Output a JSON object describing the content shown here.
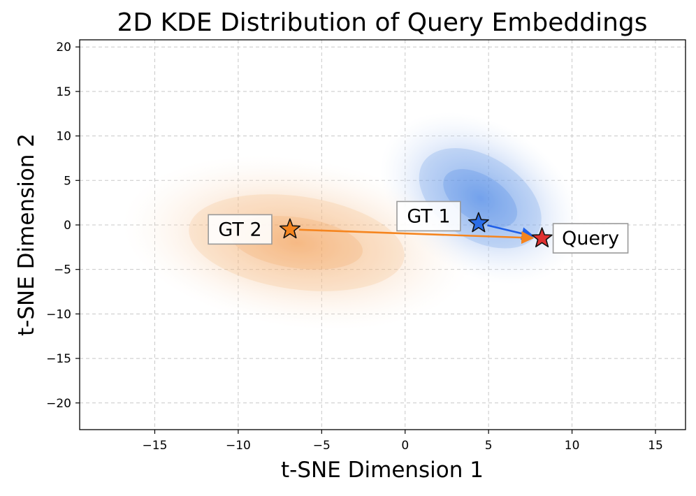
{
  "chart_data": {
    "type": "scatter",
    "title": "2D KDE Distribution of Query Embeddings",
    "xlabel": "t-SNE Dimension 1",
    "ylabel": "t-SNE Dimension 2",
    "xlim": [
      -19.5,
      16.8
    ],
    "ylim": [
      -23,
      20.8
    ],
    "xticks": [
      -15,
      -10,
      -5,
      0,
      5,
      10,
      15
    ],
    "yticks": [
      -20,
      -15,
      -10,
      -5,
      0,
      5,
      10,
      15,
      20
    ],
    "xtick_labels": [
      "−15",
      "−10",
      "−5",
      "0",
      "5",
      "10",
      "15"
    ],
    "ytick_labels": [
      "−20",
      "−15",
      "−10",
      "−5",
      "0",
      "5",
      "10",
      "15",
      "20"
    ],
    "grid": true,
    "kde_regions": [
      {
        "name": "GT 1 density",
        "color": "#3b7ddd",
        "center": [
          4.5,
          3.0
        ],
        "spread": [
          6.5,
          8.5
        ]
      },
      {
        "name": "GT 2 density",
        "color": "#f08a2c",
        "center": [
          -6.5,
          -2.0
        ],
        "spread": [
          10.5,
          9.5
        ]
      }
    ],
    "points": [
      {
        "label": "GT 1",
        "x": 4.4,
        "y": 0.2,
        "color": "#2a6de8"
      },
      {
        "label": "GT 2",
        "x": -6.9,
        "y": -0.5,
        "color": "#f5851f"
      },
      {
        "label": "Query",
        "x": 8.2,
        "y": -1.5,
        "color": "#e03131"
      }
    ],
    "arrows": [
      {
        "from": "GT 1",
        "to": "Query",
        "color": "#1f5fe8"
      },
      {
        "from": "GT 2",
        "to": "Query",
        "color": "#f5851f"
      }
    ]
  }
}
